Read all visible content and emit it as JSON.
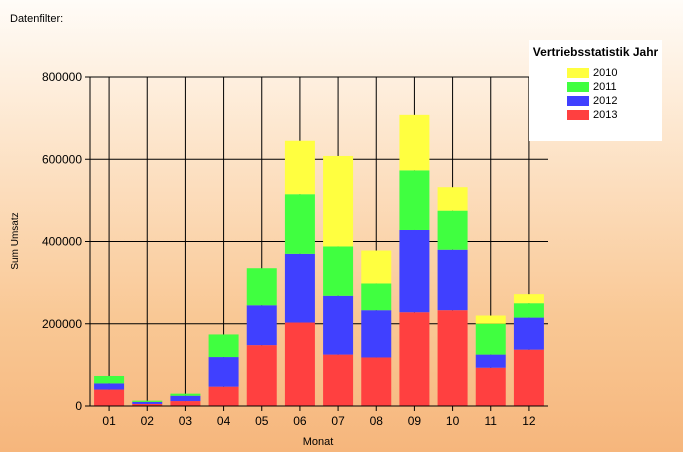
{
  "header": {
    "filter_label": "Datenfilter:"
  },
  "colors": {
    "2010": "#ffff40",
    "2011": "#40ff40",
    "2012": "#4040ff",
    "2013": "#ff4040"
  },
  "chart_data": {
    "type": "bar",
    "stacked": true,
    "title": "",
    "xlabel": "Monat",
    "ylabel": "Sum Umsatz",
    "ylim": [
      0,
      800000
    ],
    "yticks": [
      0,
      200000,
      400000,
      600000,
      800000
    ],
    "ytick_labels": [
      "0",
      "200000",
      "400000",
      "600000",
      "800000"
    ],
    "grid": true,
    "legend_position": "top-right",
    "legend_title": "Vertriebsstatistik Jahr",
    "categories": [
      "01",
      "02",
      "03",
      "04",
      "05",
      "06",
      "07",
      "08",
      "09",
      "10",
      "11",
      "12"
    ],
    "series": [
      {
        "name": "2013",
        "color": "#ff4040",
        "values": [
          40000,
          5000,
          12000,
          47000,
          148000,
          203000,
          125000,
          118000,
          228000,
          233000,
          93000,
          137000
        ]
      },
      {
        "name": "2012",
        "color": "#4040ff",
        "values": [
          15000,
          5000,
          13000,
          72000,
          97000,
          167000,
          143000,
          115000,
          200000,
          147000,
          32000,
          78000
        ]
      },
      {
        "name": "2011",
        "color": "#40ff40",
        "values": [
          18000,
          3000,
          5000,
          55000,
          90000,
          145000,
          120000,
          65000,
          145000,
          95000,
          75000,
          35000
        ]
      },
      {
        "name": "2010",
        "color": "#ffff40",
        "values": [
          0,
          0,
          0,
          0,
          0,
          130000,
          220000,
          80000,
          135000,
          57000,
          20000,
          22000
        ]
      }
    ]
  }
}
